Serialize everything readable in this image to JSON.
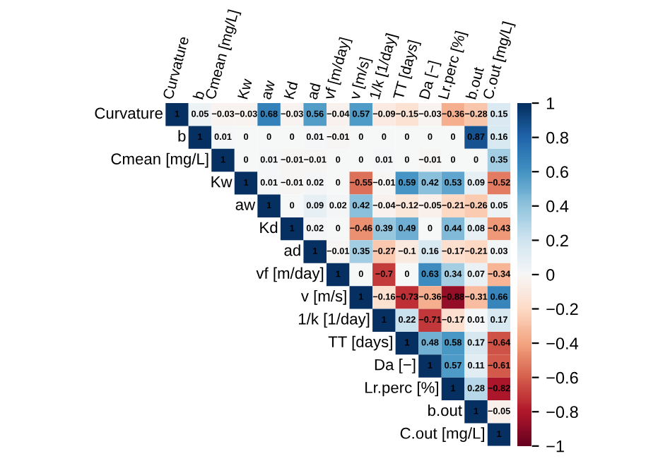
{
  "chart_data": {
    "type": "heatmap",
    "categories": [
      "Curvature",
      "b",
      "Cmean [mg/L]",
      "Kw",
      "aw",
      "Kd",
      "ad",
      "vf [m/day]",
      "v [m/s]",
      "1/k [1/day]",
      "TT [days]",
      "Da [−]",
      "Lr.perc [%]",
      "b.out",
      "C.out [mg/L]"
    ],
    "y_categories": [
      "Curvature",
      "b",
      "Cmean [mg/L]",
      "Kw",
      "aw",
      "Kd",
      "ad",
      "vf [m/day]",
      "v [m/s]",
      "1/k [1/day]",
      "TT [days]",
      "Da [−]",
      "Lr.perc [%]",
      "b.out",
      "C.out [mg/L]"
    ],
    "cells": [
      [
        1,
        0.05,
        -0.03,
        -0.03,
        0.68,
        -0.03,
        0.56,
        -0.04,
        0.57,
        -0.09,
        -0.15,
        -0.03,
        -0.36,
        -0.28,
        0.15
      ],
      [
        null,
        1,
        0.01,
        0,
        0,
        0,
        0.01,
        -0.01,
        0,
        0,
        0,
        0,
        0,
        0.87,
        0.16
      ],
      [
        null,
        null,
        1,
        0,
        0.01,
        -0.01,
        -0.01,
        0,
        0,
        0.01,
        0,
        -0.01,
        0,
        0,
        0.35
      ],
      [
        null,
        null,
        null,
        1,
        0.01,
        -0.01,
        0.02,
        0,
        -0.55,
        -0.01,
        0.59,
        0.42,
        0.53,
        0.09,
        -0.52
      ],
      [
        null,
        null,
        null,
        null,
        1,
        0,
        0.09,
        0.02,
        0.42,
        -0.04,
        -0.12,
        -0.05,
        -0.21,
        -0.26,
        0.05
      ],
      [
        null,
        null,
        null,
        null,
        null,
        1,
        0.02,
        0,
        -0.46,
        0.39,
        0.49,
        0,
        0.44,
        0.08,
        -0.43
      ],
      [
        null,
        null,
        null,
        null,
        null,
        null,
        1,
        -0.01,
        0.35,
        -0.27,
        -0.1,
        0.16,
        -0.17,
        -0.21,
        0.03
      ],
      [
        null,
        null,
        null,
        null,
        null,
        null,
        null,
        1,
        0,
        -0.7,
        0,
        0.63,
        0.34,
        0.07,
        -0.34
      ],
      [
        null,
        null,
        null,
        null,
        null,
        null,
        null,
        null,
        1,
        -0.16,
        -0.73,
        -0.36,
        -0.88,
        -0.31,
        0.66
      ],
      [
        null,
        null,
        null,
        null,
        null,
        null,
        null,
        null,
        null,
        1,
        0.22,
        -0.71,
        -0.17,
        0.01,
        0.17
      ],
      [
        null,
        null,
        null,
        null,
        null,
        null,
        null,
        null,
        null,
        null,
        1,
        0.48,
        0.58,
        0.17,
        -0.64
      ],
      [
        null,
        null,
        null,
        null,
        null,
        null,
        null,
        null,
        null,
        null,
        null,
        1,
        0.57,
        0.11,
        -0.61
      ],
      [
        null,
        null,
        null,
        null,
        null,
        null,
        null,
        null,
        null,
        null,
        null,
        null,
        1,
        0.28,
        -0.82
      ],
      [
        null,
        null,
        null,
        null,
        null,
        null,
        null,
        null,
        null,
        null,
        null,
        null,
        null,
        1,
        -0.05
      ],
      [
        null,
        null,
        null,
        null,
        null,
        null,
        null,
        null,
        null,
        null,
        null,
        null,
        null,
        null,
        1
      ]
    ],
    "data_labels": true,
    "clim": [
      -1,
      1
    ],
    "cticks": [
      {
        "value": -1,
        "label": "−1"
      },
      {
        "value": -0.8,
        "label": "−0.8"
      },
      {
        "value": -0.6,
        "label": "−0.6"
      },
      {
        "value": -0.4,
        "label": "−0.4"
      },
      {
        "value": -0.2,
        "label": "−0.2"
      },
      0,
      0.2,
      0.4,
      0.6,
      0.8,
      1
    ]
  }
}
